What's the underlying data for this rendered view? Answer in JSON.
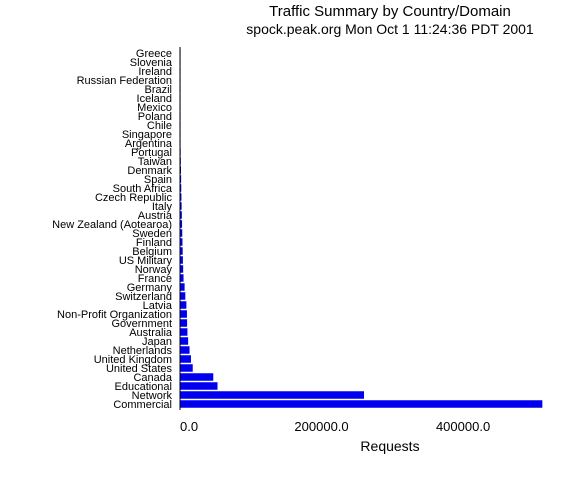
{
  "chart_data": {
    "type": "bar",
    "orientation": "horizontal",
    "title": "Traffic Summary by Country/Domain",
    "subtitle": "spock.peak.org Mon Oct  1 11:24:36 PDT 2001",
    "xlabel": "Requests",
    "ylabel": "",
    "xlim": [
      0,
      520000
    ],
    "xticks": [
      0,
      200000,
      400000
    ],
    "xtick_labels": [
      "0.0",
      "200000.0",
      "400000.0"
    ],
    "grid": false,
    "legend": "none",
    "bar_color": "#0000ee",
    "categories": [
      "Greece",
      "Slovenia",
      "Ireland",
      "Russian Federation",
      "Brazil",
      "Iceland",
      "Mexico",
      "Poland",
      "Chile",
      "Singapore",
      "Argentina",
      "Portugal",
      "Taiwan",
      "Denmark",
      "Spain",
      "South Africa",
      "Czech Republic",
      "Italy",
      "Austria",
      "New Zealand (Aotearoa)",
      "Sweden",
      "Finland",
      "Belgium",
      "US Military",
      "Norway",
      "France",
      "Germany",
      "Switzerland",
      "Latvia",
      "Non-Profit Organization",
      "Government",
      "Australia",
      "Japan",
      "Netherlands",
      "United Kingdom",
      "United States",
      "Canada",
      "Educational",
      "Network",
      "Commercial"
    ],
    "values": [
      200,
      250,
      300,
      350,
      400,
      450,
      500,
      550,
      600,
      700,
      800,
      1000,
      1200,
      1400,
      1600,
      1800,
      2000,
      2300,
      2600,
      2900,
      3200,
      3500,
      3800,
      4100,
      4500,
      5000,
      6500,
      7500,
      9000,
      9800,
      10000,
      10500,
      11500,
      13500,
      15500,
      18000,
      47000,
      53000,
      260000,
      512000
    ]
  }
}
